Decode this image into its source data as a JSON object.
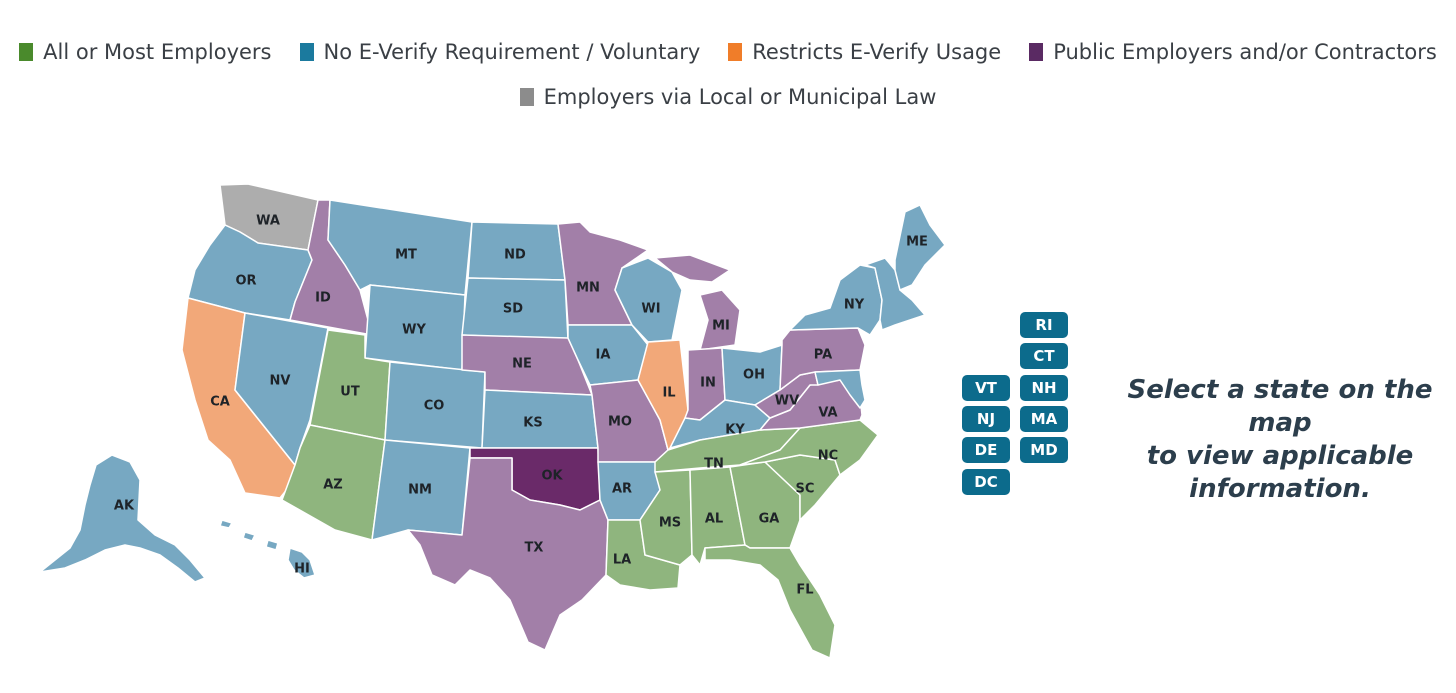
{
  "colors": {
    "all_or_most": "#8fb57e",
    "voluntary": "#77a8c2",
    "restricts": "#f2a879",
    "public": "#a27fa8",
    "local": "#adadad",
    "oklahoma": "#6a2a69",
    "button": "#0c6b8c"
  },
  "legend": [
    {
      "label": "All or Most Employers",
      "color": "#4a8a2c"
    },
    {
      "label": "No E-Verify Requirement / Voluntary",
      "color": "#1b7a9e"
    },
    {
      "label": "Restricts E-Verify Usage",
      "color": "#f07d29"
    },
    {
      "label": "Public Employers and/or Contractors",
      "color": "#5a2a63"
    },
    {
      "label": "Employers via Local or Municipal Law",
      "color": "#8c8c8c"
    }
  ],
  "states": [
    {
      "code": "WA",
      "category": "local"
    },
    {
      "code": "OR",
      "category": "voluntary"
    },
    {
      "code": "CA",
      "category": "restricts"
    },
    {
      "code": "ID",
      "category": "public"
    },
    {
      "code": "NV",
      "category": "voluntary"
    },
    {
      "code": "MT",
      "category": "voluntary"
    },
    {
      "code": "WY",
      "category": "voluntary"
    },
    {
      "code": "UT",
      "category": "all_or_most"
    },
    {
      "code": "AZ",
      "category": "all_or_most"
    },
    {
      "code": "CO",
      "category": "voluntary"
    },
    {
      "code": "NM",
      "category": "voluntary"
    },
    {
      "code": "ND",
      "category": "voluntary"
    },
    {
      "code": "SD",
      "category": "voluntary"
    },
    {
      "code": "NE",
      "category": "public"
    },
    {
      "code": "KS",
      "category": "voluntary"
    },
    {
      "code": "OK",
      "category": "oklahoma"
    },
    {
      "code": "TX",
      "category": "public"
    },
    {
      "code": "MN",
      "category": "public"
    },
    {
      "code": "IA",
      "category": "voluntary"
    },
    {
      "code": "MO",
      "category": "public"
    },
    {
      "code": "AR",
      "category": "voluntary"
    },
    {
      "code": "LA",
      "category": "all_or_most"
    },
    {
      "code": "WI",
      "category": "voluntary"
    },
    {
      "code": "IL",
      "category": "restricts"
    },
    {
      "code": "MI",
      "category": "public"
    },
    {
      "code": "IN",
      "category": "public"
    },
    {
      "code": "OH",
      "category": "voluntary"
    },
    {
      "code": "KY",
      "category": "voluntary"
    },
    {
      "code": "TN",
      "category": "all_or_most"
    },
    {
      "code": "MS",
      "category": "all_or_most"
    },
    {
      "code": "AL",
      "category": "all_or_most"
    },
    {
      "code": "GA",
      "category": "all_or_most"
    },
    {
      "code": "FL",
      "category": "all_or_most"
    },
    {
      "code": "SC",
      "category": "all_or_most"
    },
    {
      "code": "NC",
      "category": "all_or_most"
    },
    {
      "code": "VA",
      "category": "public"
    },
    {
      "code": "WV",
      "category": "public"
    },
    {
      "code": "PA",
      "category": "public"
    },
    {
      "code": "NY",
      "category": "voluntary"
    },
    {
      "code": "ME",
      "category": "voluntary"
    },
    {
      "code": "AK",
      "category": "voluntary"
    },
    {
      "code": "HI",
      "category": "voluntary"
    }
  ],
  "small_states_left": [
    "VT",
    "NJ",
    "DE",
    "DC"
  ],
  "small_states_right": [
    "RI",
    "CT",
    "NH",
    "MA",
    "MD"
  ],
  "prompt_lines": [
    "Select a state on the map",
    "to view applicable",
    "information."
  ]
}
